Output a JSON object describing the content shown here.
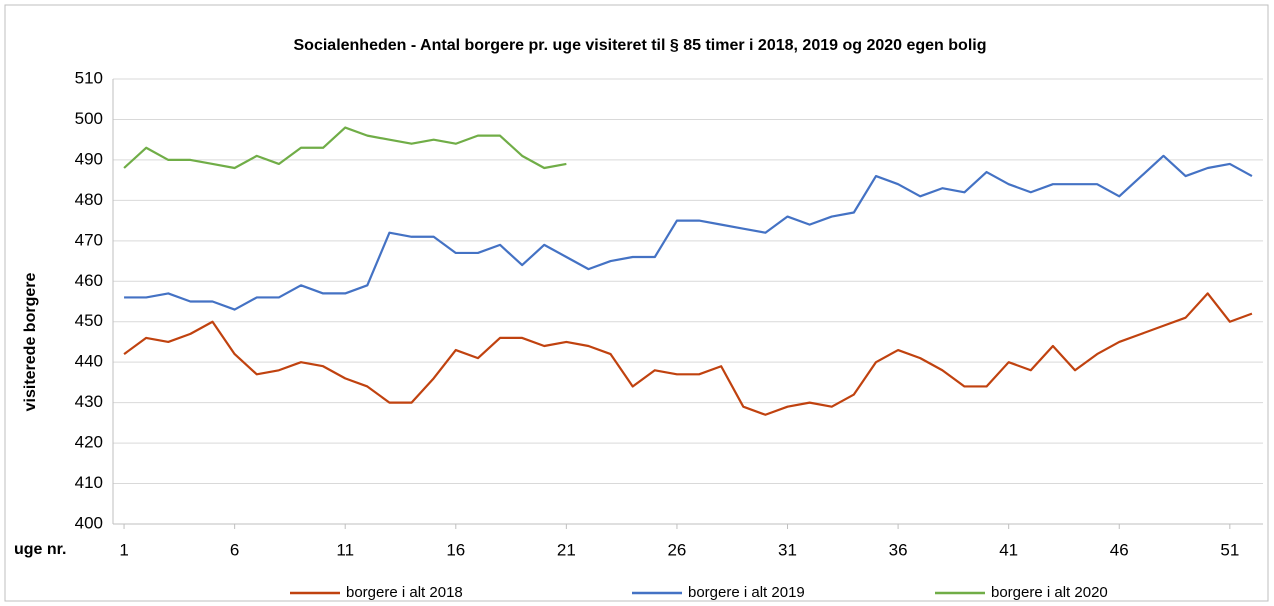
{
  "chart_data": {
    "type": "line",
    "title": "Socialenheden - Antal borgere pr. uge visiteret til § 85 timer i 2018, 2019 og 2020 egen bolig",
    "y_label": "visiterede borgere",
    "x_label": "uge nr.",
    "x": [
      1,
      2,
      3,
      4,
      5,
      6,
      7,
      8,
      9,
      10,
      11,
      12,
      13,
      14,
      15,
      16,
      17,
      18,
      19,
      20,
      21,
      22,
      23,
      24,
      25,
      26,
      27,
      28,
      29,
      30,
      31,
      32,
      33,
      34,
      35,
      36,
      37,
      38,
      39,
      40,
      41,
      42,
      43,
      44,
      45,
      46,
      47,
      48,
      49,
      50,
      51,
      52
    ],
    "xlim": [
      0.5,
      52.5
    ],
    "xticks": [
      1,
      6,
      11,
      16,
      21,
      26,
      31,
      36,
      41,
      46,
      51
    ],
    "ylim": [
      400,
      510
    ],
    "yticks": [
      400,
      410,
      420,
      430,
      440,
      450,
      460,
      470,
      480,
      490,
      500,
      510
    ],
    "grid": true,
    "legend": "bottom",
    "series": [
      {
        "name": "borgere i alt 2018",
        "color": "#c0420f",
        "values": [
          442,
          446,
          445,
          447,
          450,
          442,
          437,
          438,
          440,
          439,
          436,
          434,
          430,
          430,
          436,
          443,
          441,
          446,
          446,
          444,
          445,
          444,
          442,
          434,
          438,
          437,
          437,
          439,
          429,
          427,
          429,
          430,
          429,
          432,
          440,
          443,
          441,
          438,
          434,
          434,
          440,
          438,
          444,
          438,
          442,
          445,
          447,
          449,
          451,
          457,
          450,
          452
        ]
      },
      {
        "name": "borgere i alt 2019",
        "color": "#4472c4",
        "values": [
          456,
          456,
          457,
          455,
          455,
          453,
          456,
          456,
          459,
          457,
          457,
          459,
          472,
          471,
          471,
          467,
          467,
          469,
          464,
          469,
          466,
          463,
          465,
          466,
          466,
          475,
          475,
          474,
          473,
          472,
          476,
          474,
          476,
          477,
          486,
          484,
          481,
          483,
          482,
          487,
          484,
          482,
          484,
          484,
          484,
          481,
          486,
          491,
          486,
          488,
          489,
          486
        ]
      },
      {
        "name": "borgere i alt 2020",
        "color": "#70ad47",
        "values": [
          488,
          493,
          490,
          490,
          489,
          488,
          491,
          489,
          493,
          493,
          498,
          496,
          495,
          494,
          495,
          494,
          496,
          496,
          491,
          488,
          489,
          null,
          null,
          null,
          null,
          null,
          null,
          null,
          null,
          null,
          null,
          null,
          null,
          null,
          null,
          null,
          null,
          null,
          null,
          null,
          null,
          null,
          null,
          null,
          null,
          null,
          null,
          null,
          null,
          null,
          null,
          null
        ]
      }
    ]
  }
}
